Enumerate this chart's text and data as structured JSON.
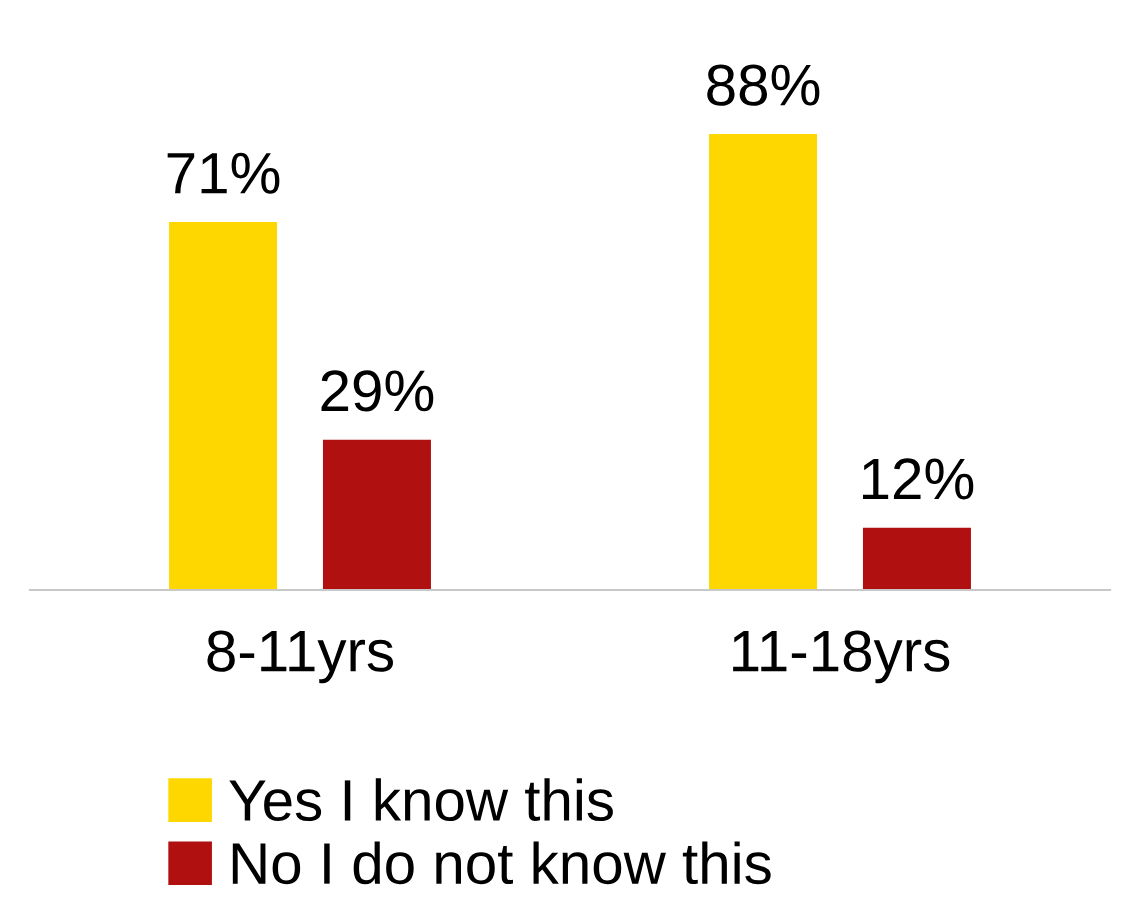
{
  "chart_data": {
    "type": "bar",
    "categories": [
      "8-11yrs",
      "11-18yrs"
    ],
    "series": [
      {
        "name": "Yes I know this",
        "color": "#ffd700",
        "values": [
          71,
          88
        ],
        "value_labels": [
          "71%",
          "88%"
        ]
      },
      {
        "name": "No I do not know this",
        "color": "#b01010",
        "values": [
          29,
          12
        ],
        "value_labels": [
          "29%",
          "12%"
        ]
      }
    ],
    "legend": "bottom",
    "grid": false
  }
}
